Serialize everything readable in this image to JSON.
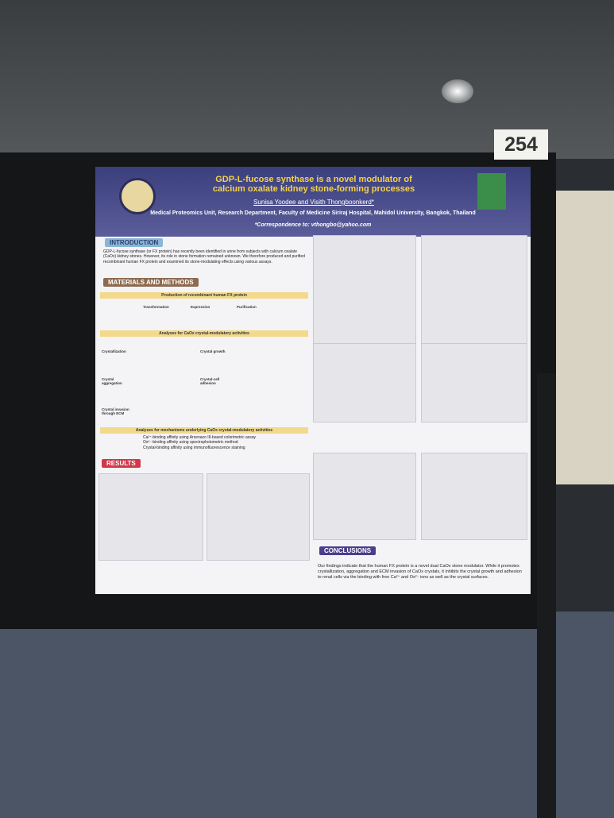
{
  "board_number": "254",
  "poster": {
    "title": [
      "GDP-L-fucose synthase is a novel modulator of",
      "calcium oxalate kidney stone-forming processes"
    ],
    "authors": "Sunisa Yoodee and Visith Thongboonkerd*",
    "affiliation": "Medical Proteomics Unit, Research Department, Faculty of Medicine Siriraj Hospital, Mahidol University, Bangkok, Thailand",
    "correspondence": "*Correspondence to: vthongbo@yahoo.com",
    "introduction": {
      "heading": "INTRODUCTION",
      "text": "GDP-L-fucose synthase (or FX protein) has recently been identified in urine from subjects with calcium oxalate (CaOx) kidney stones. However, its role in stone formation remained unknown. We therefore produced and purified recombinant human FX protein and examined its stone-modulating effects using various assays."
    },
    "methods": {
      "heading": "MATERIALS AND METHODS",
      "subheadings": [
        "Production of recombinant human FX protein",
        "Analyses for CaOx crystal-modulatory activities",
        "Analyses for mechanisms underlying CaOx crystal-modulatory activities"
      ],
      "steps": [
        "Transformation",
        "Expression",
        "Purification"
      ],
      "assays": [
        "Crystallization",
        "Crystal growth",
        "Crystal aggregation",
        "Crystal-cell adhesion",
        "Crystal invasion through ECM"
      ],
      "bullets": [
        "Ca²⁺-binding affinity using Arsenazo III-based colorimetric assay",
        "Ox²⁻-binding affinity using spectrophotometric method",
        "Crystal-binding affinity using immunofluorescence staining"
      ]
    },
    "results": {
      "heading": "RESULTS"
    },
    "conclusions": {
      "heading": "CONCLUSIONS",
      "text": "Our findings indicate that the human FX protein is a novel dual CaOx stone modulator. While it promotes crystallization, aggregation and ECM invasion of CaOx crystals, it inhibits the crystal growth and adhesion to renal cells via the binding with free Ca²⁺ and Ox²⁻ ions as well as the crystal surfaces."
    }
  }
}
